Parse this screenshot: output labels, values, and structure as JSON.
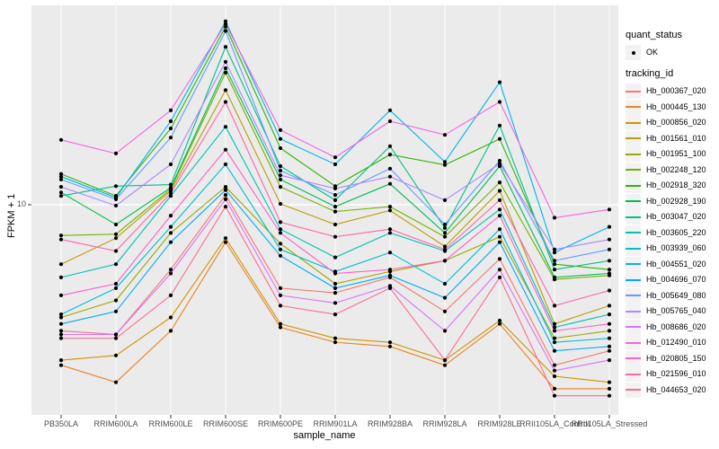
{
  "chart_data": {
    "type": "line",
    "title": "",
    "xlabel": "sample_name",
    "ylabel": "FPKM + 1",
    "y_scale": "log10",
    "y_axis_tick_labels": [
      "10"
    ],
    "y_range_approx": [
      1.05,
      85
    ],
    "grid": true,
    "legend_position": "right",
    "marker": {
      "shape": "point",
      "color": "#000000"
    },
    "categories": [
      "PB350LA",
      "RRIM600LA",
      "RRIM600LE",
      "RRIM600SE",
      "RRIM600PE",
      "RRIM901LA",
      "RRIM928BA",
      "RRIM928LA",
      "RRIM928LE",
      "RRII105LA_Control",
      "RRII105LA_Stressed"
    ],
    "series": [
      {
        "name": "Hb_000367_020",
        "color": "#F8766D",
        "values": [
          2.6,
          2.5,
          5.0,
          11.1,
          4.1,
          3.9,
          4.6,
          3.2,
          5.6,
          1.8,
          2.1
        ]
      },
      {
        "name": "Hb_000445_130",
        "color": "#E88526",
        "values": [
          1.8,
          1.5,
          2.6,
          6.7,
          2.7,
          2.3,
          2.2,
          1.8,
          2.8,
          1.4,
          1.4
        ]
      },
      {
        "name": "Hb_000856_020",
        "color": "#D39200",
        "values": [
          1.9,
          2.0,
          3.0,
          7.0,
          2.8,
          2.4,
          2.3,
          1.9,
          2.9,
          1.6,
          1.5
        ]
      },
      {
        "name": "Hb_001561_010",
        "color": "#BB9D00",
        "values": [
          5.3,
          7.0,
          11.6,
          34,
          10.1,
          8.1,
          9.4,
          6.4,
          11.6,
          2.8,
          3.4
        ]
      },
      {
        "name": "Hb_001951_100",
        "color": "#9DA700",
        "values": [
          3.0,
          3.6,
          7.4,
          12.1,
          6.6,
          4.3,
          4.9,
          5.5,
          7.1,
          2.4,
          2.6
        ]
      },
      {
        "name": "Hb_002248_120",
        "color": "#75AF00",
        "values": [
          7.2,
          7.3,
          11.8,
          41,
          12.1,
          9.3,
          9.8,
          7.1,
          12.7,
          4.5,
          4.7
        ]
      },
      {
        "name": "Hb_002918_320",
        "color": "#2CB600",
        "values": [
          13.9,
          11.0,
          22.6,
          67,
          18.3,
          12.2,
          17.1,
          15.3,
          20.2,
          5.3,
          5.0
        ]
      },
      {
        "name": "Hb_002928_190",
        "color": "#00BC51",
        "values": [
          11.4,
          8.1,
          12.0,
          43,
          13.1,
          9.8,
          12.5,
          7.4,
          15.1,
          4.6,
          4.8
        ]
      },
      {
        "name": "Hb_003047_020",
        "color": "#00C08B",
        "values": [
          11.0,
          12.2,
          12.4,
          54,
          15.1,
          10.5,
          18.7,
          7.8,
          23.3,
          5.0,
          5.5
        ]
      },
      {
        "name": "Hb_003605_220",
        "color": "#00C0B4",
        "values": [
          4.6,
          5.3,
          11.0,
          23,
          7.7,
          5.7,
          7.4,
          6.1,
          9.5,
          2.7,
          3.1
        ]
      },
      {
        "name": "Hb_003939_060",
        "color": "#00BDD4",
        "values": [
          3.1,
          4.1,
          7.9,
          15.4,
          6.2,
          4.9,
          6.0,
          4.3,
          7.7,
          2.3,
          2.4
        ]
      },
      {
        "name": "Hb_004551_020",
        "color": "#00B5EB",
        "values": [
          13.5,
          10.8,
          24.4,
          71,
          20.2,
          15.4,
          27.4,
          15.8,
          37,
          6.0,
          7.9
        ]
      },
      {
        "name": "Hb_004696_070",
        "color": "#00A9FB",
        "values": [
          2.8,
          3.2,
          6.7,
          11.7,
          5.8,
          4.1,
          4.7,
          3.7,
          6.7,
          2.1,
          2.2
        ]
      },
      {
        "name": "Hb_005649_080",
        "color": "#619CFF",
        "values": [
          13.1,
          10.6,
          20.5,
          64,
          14.4,
          11.1,
          14.7,
          8.1,
          16.0,
          5.5,
          6.2
        ]
      },
      {
        "name": "Hb_005765_040",
        "color": "#AE87FF",
        "values": [
          12.1,
          9.9,
          15.4,
          46,
          13.7,
          11.9,
          13.5,
          10.5,
          15.5,
          6.2,
          6.9
        ]
      },
      {
        "name": "Hb_008686_020",
        "color": "#DB72FB",
        "values": [
          2.5,
          2.5,
          4.8,
          10.6,
          3.8,
          3.5,
          4.2,
          2.6,
          5.0,
          1.7,
          1.9
        ]
      },
      {
        "name": "Hb_012490_010",
        "color": "#F564E3",
        "values": [
          20.0,
          17.3,
          27.4,
          69,
          22.2,
          16.6,
          24.4,
          21.1,
          30,
          8.7,
          9.5
        ]
      },
      {
        "name": "Hb_020805_150",
        "color": "#FD61CA",
        "values": [
          3.8,
          4.3,
          8.9,
          18,
          7.4,
          4.8,
          5.0,
          5.5,
          8.9,
          2.6,
          2.8
        ]
      },
      {
        "name": "Hb_021596_010",
        "color": "#FF65AC",
        "values": [
          6.9,
          6.1,
          11.3,
          30,
          8.3,
          7.1,
          7.7,
          6.2,
          10.5,
          3.4,
          4.0
        ]
      },
      {
        "name": "Hb_044653_020",
        "color": "#FF6C90",
        "values": [
          2.4,
          2.4,
          3.8,
          9.8,
          3.4,
          3.1,
          4.1,
          1.9,
          4.6,
          1.3,
          1.3
        ]
      }
    ]
  },
  "legend": {
    "quant_status_title": "quant_status",
    "quant_status_items": [
      {
        "label": "OK"
      }
    ],
    "tracking_id_title": "tracking_id"
  },
  "panel": {
    "background": "#EBEBEB",
    "gridline_color": "#FFFFFF",
    "tick_color": "#333333",
    "axis_text_color": "#4D4D4D",
    "legend_key_background": "#F2F2F2"
  }
}
